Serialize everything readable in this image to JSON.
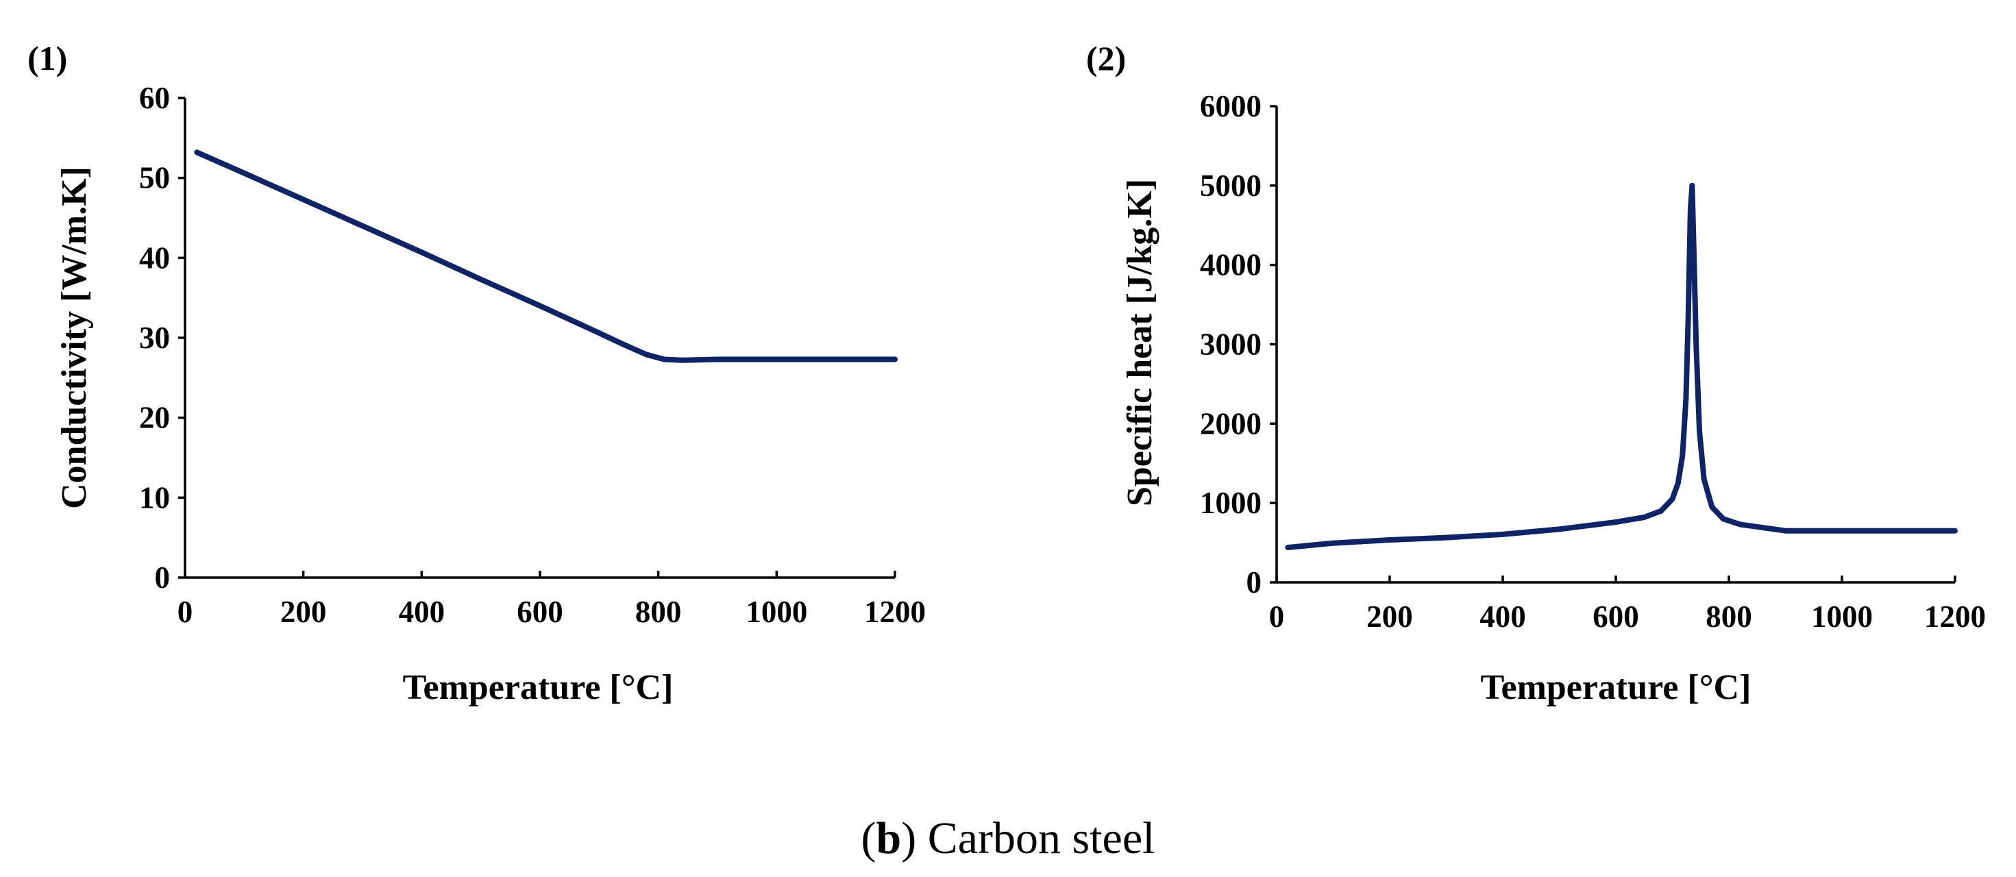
{
  "caption": {
    "letter": "b",
    "text": "Carbon steel"
  },
  "colors": {
    "series": "#0e2466",
    "axis": "#000000",
    "text": "#000000"
  },
  "chart_data": [
    {
      "type": "line",
      "panel_label": "(1)",
      "title": "",
      "xlabel": "Temperature [°C]",
      "ylabel": "Conductivity [W/m.K]",
      "xlim": [
        0,
        1200
      ],
      "ylim": [
        0,
        60
      ],
      "xticks": [
        0,
        200,
        400,
        600,
        800,
        1000,
        1200
      ],
      "yticks": [
        0,
        10,
        20,
        30,
        40,
        50,
        60
      ],
      "grid": false,
      "series": [
        {
          "name": "Conductivity",
          "x": [
            20,
            100,
            200,
            300,
            400,
            500,
            600,
            700,
            740,
            780,
            810,
            840,
            900,
            1000,
            1100,
            1200
          ],
          "y": [
            53.2,
            50.6,
            47.3,
            44.0,
            40.7,
            37.3,
            34.0,
            30.6,
            29.2,
            27.9,
            27.3,
            27.2,
            27.3,
            27.3,
            27.3,
            27.3
          ]
        }
      ]
    },
    {
      "type": "line",
      "panel_label": "(2)",
      "title": "",
      "xlabel": "Temperature [°C]",
      "ylabel": "Specific heat [J/kg.K]",
      "xlim": [
        0,
        1200
      ],
      "ylim": [
        0,
        6000
      ],
      "xticks": [
        0,
        200,
        400,
        600,
        800,
        1000,
        1200
      ],
      "yticks": [
        0,
        1000,
        2000,
        3000,
        4000,
        5000,
        6000
      ],
      "grid": false,
      "series": [
        {
          "name": "Specific heat",
          "x": [
            20,
            100,
            200,
            300,
            400,
            500,
            600,
            650,
            680,
            700,
            710,
            718,
            724,
            728,
            732,
            735,
            738,
            742,
            748,
            756,
            770,
            790,
            820,
            860,
            900,
            1000,
            1100,
            1200
          ],
          "y": [
            440,
            495,
            535,
            565,
            605,
            670,
            760,
            820,
            900,
            1050,
            1250,
            1600,
            2300,
            3300,
            4700,
            5000,
            4200,
            3000,
            1900,
            1300,
            950,
            800,
            730,
            690,
            650,
            650,
            650,
            650
          ]
        }
      ]
    }
  ]
}
